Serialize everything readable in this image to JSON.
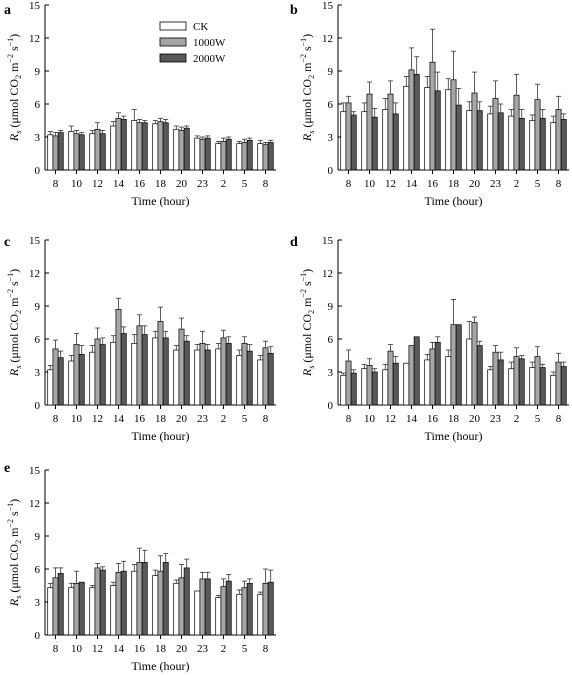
{
  "legend": [
    {
      "name": "CK",
      "color": "#ffffff"
    },
    {
      "name": "1000W",
      "color": "#a6a6a6"
    },
    {
      "name": "2000W",
      "color": "#595959"
    }
  ],
  "chart_data": [
    {
      "panel": "a",
      "type": "bar",
      "xlabel": "Time (hour)",
      "ylabel": "R_s (μmol CO_2 m^-2 s^-1)",
      "ylim": [
        0,
        15
      ],
      "yticks": [
        0,
        3,
        6,
        9,
        12,
        15
      ],
      "categories": [
        "8",
        "10",
        "12",
        "14",
        "16",
        "18",
        "20",
        "23",
        "2",
        "5",
        "8"
      ],
      "series": [
        {
          "name": "CK",
          "values": [
            3.2,
            3.5,
            3.3,
            4.0,
            4.5,
            4.2,
            3.7,
            2.9,
            2.4,
            2.4,
            2.4
          ],
          "errors": [
            0.3,
            0.5,
            0.3,
            0.4,
            1.0,
            0.3,
            0.3,
            0.2,
            0.2,
            0.2,
            0.3
          ]
        },
        {
          "name": "1000W",
          "values": [
            3.1,
            3.3,
            3.7,
            4.7,
            4.3,
            4.4,
            3.6,
            2.8,
            2.6,
            2.5,
            2.3
          ],
          "errors": [
            0.3,
            0.3,
            0.6,
            0.5,
            0.3,
            0.3,
            0.3,
            0.2,
            0.3,
            0.3,
            0.2
          ]
        },
        {
          "name": "2000W",
          "values": [
            3.4,
            3.2,
            3.3,
            4.6,
            4.3,
            4.3,
            3.8,
            2.9,
            2.8,
            2.7,
            2.5
          ],
          "errors": [
            0.2,
            0.2,
            0.3,
            0.3,
            0.2,
            0.3,
            0.2,
            0.2,
            0.2,
            0.2,
            0.2
          ]
        }
      ],
      "legend_placement": "top-center"
    },
    {
      "panel": "b",
      "type": "bar",
      "xlabel": "Time (hour)",
      "ylabel": "R_s (μmol CO_2 m^-2 s^-1)",
      "ylim": [
        0,
        15
      ],
      "yticks": [
        0,
        3,
        6,
        9,
        12,
        15
      ],
      "categories": [
        "8",
        "10",
        "12",
        "14",
        "16",
        "18",
        "20",
        "23",
        "2",
        "5",
        "8"
      ],
      "series": [
        {
          "name": "CK",
          "values": [
            5.3,
            5.3,
            5.5,
            7.6,
            7.5,
            7.3,
            5.4,
            5.1,
            4.9,
            4.5,
            4.3
          ],
          "errors": [
            0.8,
            0.8,
            1.0,
            0.9,
            1.0,
            1.0,
            0.8,
            0.7,
            0.6,
            0.5,
            0.6
          ]
        },
        {
          "name": "1000W",
          "values": [
            6.1,
            6.9,
            6.9,
            9.1,
            9.8,
            8.2,
            7.0,
            6.5,
            6.8,
            6.4,
            5.5
          ],
          "errors": [
            0.6,
            1.1,
            1.2,
            2.0,
            3.0,
            2.6,
            1.9,
            1.6,
            1.9,
            1.4,
            1.2
          ]
        },
        {
          "name": "2000W",
          "values": [
            5.0,
            4.8,
            5.1,
            8.7,
            7.2,
            5.9,
            5.4,
            5.2,
            4.7,
            4.7,
            4.6
          ],
          "errors": [
            0.3,
            0.8,
            1.0,
            1.6,
            1.7,
            1.5,
            0.8,
            0.8,
            0.8,
            0.8,
            0.5
          ]
        }
      ]
    },
    {
      "panel": "c",
      "type": "bar",
      "xlabel": "Time (hour)",
      "ylabel": "R_s (μmol CO_2 m^-2 s^-1)",
      "ylim": [
        0,
        15
      ],
      "yticks": [
        0,
        3,
        6,
        9,
        12,
        15
      ],
      "categories": [
        "8",
        "10",
        "12",
        "14",
        "16",
        "18",
        "20",
        "23",
        "2",
        "5",
        "8"
      ],
      "series": [
        {
          "name": "CK",
          "values": [
            3.2,
            4.0,
            4.8,
            5.7,
            5.6,
            6.1,
            5.0,
            5.0,
            5.1,
            4.5,
            4.1
          ],
          "errors": [
            0.4,
            0.5,
            0.6,
            0.6,
            0.8,
            0.6,
            0.4,
            0.5,
            0.5,
            0.5,
            0.4
          ]
        },
        {
          "name": "1000W",
          "values": [
            5.1,
            5.5,
            6.0,
            8.7,
            7.2,
            7.6,
            6.9,
            5.6,
            6.1,
            5.6,
            5.2
          ],
          "errors": [
            0.8,
            1.0,
            1.0,
            1.0,
            1.0,
            1.3,
            1.0,
            1.1,
            0.7,
            0.6,
            0.6
          ]
        },
        {
          "name": "2000W",
          "values": [
            4.3,
            4.6,
            5.5,
            6.5,
            6.4,
            6.1,
            5.8,
            5.0,
            5.6,
            4.9,
            4.7
          ],
          "errors": [
            0.6,
            0.8,
            0.6,
            0.6,
            0.8,
            0.6,
            0.5,
            0.5,
            0.6,
            0.6,
            0.6
          ]
        }
      ]
    },
    {
      "panel": "d",
      "type": "bar",
      "xlabel": "Time (hour)",
      "ylabel": "R_s (μmol CO_2 m^-2 s^-1)",
      "ylim": [
        0,
        15
      ],
      "yticks": [
        0,
        3,
        6,
        9,
        12,
        15
      ],
      "categories": [
        "8",
        "10",
        "12",
        "14",
        "16",
        "18",
        "20",
        "23",
        "2",
        "5",
        "8"
      ],
      "series": [
        {
          "name": "CK",
          "values": [
            2.7,
            3.3,
            3.2,
            3.8,
            4.1,
            4.4,
            6.0,
            3.2,
            3.3,
            3.4,
            2.7
          ],
          "errors": [
            0.2,
            0.4,
            0.5,
            0.0,
            0.5,
            0.6,
            1.6,
            0.3,
            0.6,
            0.5,
            0.3
          ]
        },
        {
          "name": "1000W",
          "values": [
            4.0,
            3.6,
            4.9,
            5.4,
            5.1,
            7.3,
            7.5,
            4.8,
            4.4,
            4.4,
            3.9
          ],
          "errors": [
            1.0,
            0.6,
            0.6,
            0.0,
            0.6,
            2.3,
            0.5,
            0.6,
            0.8,
            0.9,
            0.8
          ]
        },
        {
          "name": "2000W",
          "values": [
            2.9,
            3.0,
            3.8,
            6.2,
            5.7,
            7.3,
            5.4,
            4.1,
            4.2,
            3.4,
            3.5
          ],
          "errors": [
            0.3,
            0.3,
            0.6,
            0.0,
            0.5,
            0.0,
            0.4,
            0.7,
            0.3,
            0.3,
            0.4
          ]
        }
      ]
    },
    {
      "panel": "e",
      "type": "bar",
      "xlabel": "Time (hour)",
      "ylabel": "R_s (μmol CO_2 m^-2 s^-1)",
      "ylim": [
        0,
        15
      ],
      "yticks": [
        0,
        3,
        6,
        9,
        12,
        15
      ],
      "categories": [
        "8",
        "10",
        "12",
        "14",
        "16",
        "18",
        "20",
        "23",
        "2",
        "5",
        "8"
      ],
      "series": [
        {
          "name": "CK",
          "values": [
            4.3,
            4.3,
            4.3,
            4.5,
            5.8,
            5.4,
            4.7,
            4.0,
            3.4,
            3.7,
            3.7
          ],
          "errors": [
            0.4,
            0.4,
            0.2,
            0.3,
            0.6,
            0.5,
            0.3,
            0.0,
            0.2,
            0.4,
            0.2
          ]
        },
        {
          "name": "1000W",
          "values": [
            5.2,
            4.7,
            6.1,
            5.7,
            6.6,
            5.8,
            5.2,
            5.1,
            4.4,
            4.3,
            4.7
          ],
          "errors": [
            0.9,
            1.1,
            0.4,
            0.8,
            1.3,
            1.4,
            1.2,
            0.6,
            0.7,
            0.6,
            1.3
          ]
        },
        {
          "name": "2000W",
          "values": [
            5.6,
            4.8,
            5.9,
            5.8,
            6.6,
            6.6,
            6.1,
            5.1,
            4.9,
            4.7,
            4.8
          ],
          "errors": [
            0.5,
            0.0,
            0.3,
            0.9,
            1.1,
            0.8,
            0.8,
            0.6,
            0.6,
            0.4,
            1.1
          ]
        }
      ]
    }
  ]
}
